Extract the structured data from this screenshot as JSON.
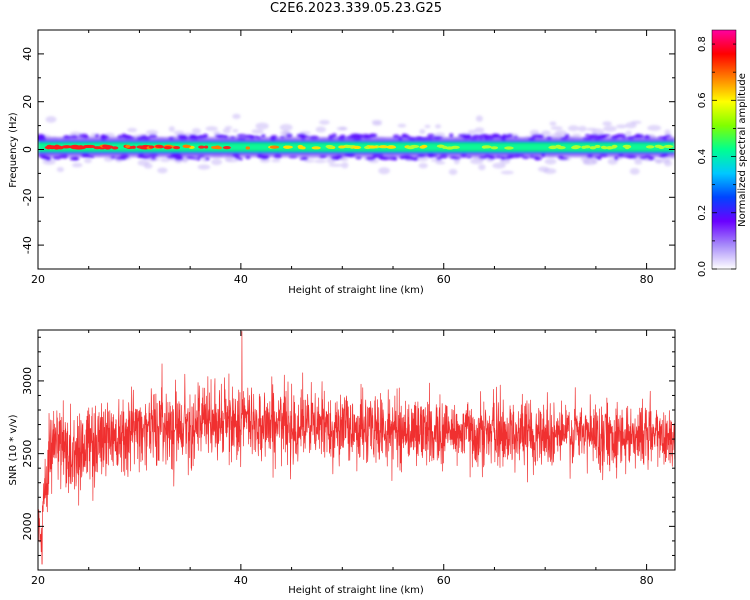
{
  "title": "C2E6.2023.339.05.23.G25",
  "colors": {
    "snr_line": "#f03030",
    "axis": "#000000"
  },
  "chart_data": [
    {
      "type": "heatmap",
      "xlabel": "Height of straight line (km)",
      "ylabel": "Frequency (Hz)",
      "xlim": [
        20,
        82.8
      ],
      "ylim": [
        -50,
        50
      ],
      "xticks": [
        20,
        40,
        60,
        80
      ],
      "yticks": [
        -40,
        -20,
        0,
        20,
        40
      ],
      "band_center_hz": 1.0,
      "band_halfwidth_hz": 7,
      "colorbar": {
        "label": "Normalized spectral amplitude",
        "range": [
          0.0,
          0.85
        ],
        "ticks": [
          "0.0",
          "0.2",
          "0.4",
          "0.6",
          "0.8"
        ],
        "tick_values": [
          0.0,
          0.2,
          0.4,
          0.6,
          0.8
        ],
        "colormap": [
          "#ffffff",
          "#a78bfa",
          "#6a00ff",
          "#0044ff",
          "#00c8ff",
          "#00ff90",
          "#80ff00",
          "#ffff00",
          "#ff8000",
          "#ff0000",
          "#ff00a0"
        ]
      }
    },
    {
      "type": "line",
      "xlabel": "Height of straight line (km)",
      "ylabel": "SNR (10 * v/v)",
      "xlim": [
        20,
        82.8
      ],
      "ylim": [
        1700,
        3350
      ],
      "xticks": [
        20,
        40,
        60,
        80
      ],
      "yticks": [
        2000,
        2500,
        3000
      ],
      "envelope": {
        "x": [
          20.0,
          20.3,
          20.6,
          21.0,
          21.5,
          22,
          23,
          24,
          25,
          26,
          28,
          30,
          33,
          36,
          40,
          45,
          50,
          55,
          60,
          65,
          70,
          75,
          80,
          82.8
        ],
        "center": [
          2100,
          1850,
          2250,
          2450,
          2580,
          2550,
          2500,
          2520,
          2560,
          2600,
          2650,
          2680,
          2700,
          2710,
          2720,
          2700,
          2680,
          2660,
          2650,
          2640,
          2640,
          2630,
          2630,
          2620
        ],
        "spread": [
          120,
          120,
          200,
          260,
          300,
          320,
          300,
          280,
          280,
          260,
          250,
          240,
          240,
          240,
          240,
          230,
          220,
          210,
          210,
          210,
          210,
          210,
          210,
          210
        ]
      },
      "extremes": {
        "min": [
          20.4,
          1740
        ],
        "max": [
          40.1,
          3340
        ]
      }
    }
  ]
}
